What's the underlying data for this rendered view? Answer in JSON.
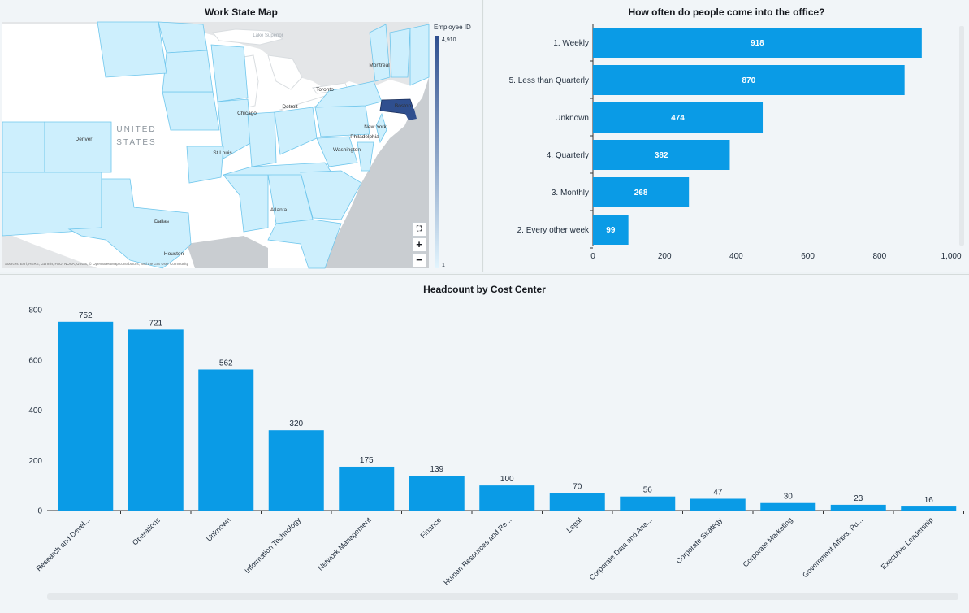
{
  "map": {
    "title": "Work State Map",
    "legend_title": "Employee ID",
    "legend_max": "4,910",
    "legend_min": "1",
    "country_label_1": "UNITED",
    "country_label_2": "STATES",
    "lake_label": "Lake Superior",
    "cities": [
      "Montreal",
      "Toronto",
      "Chicago",
      "Detroit",
      "Boston",
      "New York",
      "Philadelphia",
      "Washington",
      "Denver",
      "St Louis",
      "Atlanta",
      "Dallas",
      "Houston"
    ],
    "attribution": "Sources: Esri, HERE, Garmin, FAO, NOAA, USGS, © OpenStreetMap contributors, and the GIS User Community",
    "zoom_in": "+",
    "zoom_out": "−",
    "colors": {
      "low": "#cdeffd",
      "high": "#2f4f8f",
      "water": "#ffffff",
      "land": "#e4e6e8",
      "state_border": "#6fc6ec"
    }
  },
  "chart_data": [
    {
      "type": "bar",
      "orientation": "horizontal",
      "title": "How often do people come into the office?",
      "categories": [
        "1. Weekly",
        "5. Less than Quarterly",
        "Unknown",
        "4. Quarterly",
        "3. Monthly",
        "2. Every other week"
      ],
      "values": [
        918,
        870,
        474,
        382,
        268,
        99
      ],
      "xlim": [
        0,
        1000
      ],
      "ticks": [
        0,
        200,
        400,
        600,
        800,
        1000
      ],
      "tick_labels": [
        "0",
        "200",
        "400",
        "600",
        "800",
        "1,000"
      ],
      "color": "#0a9be6",
      "grid": false
    },
    {
      "type": "bar",
      "orientation": "vertical",
      "title": "Headcount by Cost Center",
      "categories": [
        "Research and Devel...",
        "Operations",
        "Unknown",
        "Information Technology",
        "Network Management",
        "Finance",
        "Human Resources and Re...",
        "Legal",
        "Corporate Data and Ana...",
        "Corporate Strategy",
        "Corporate Marketing",
        "Government Affairs, Pu...",
        "Executive Leadership"
      ],
      "values": [
        752,
        721,
        562,
        320,
        175,
        139,
        100,
        70,
        56,
        47,
        30,
        23,
        16
      ],
      "ylim": [
        0,
        800
      ],
      "ticks": [
        0,
        200,
        400,
        600,
        800
      ],
      "tick_labels": [
        "0",
        "200",
        "400",
        "600",
        "800"
      ],
      "color": "#0a9be6",
      "grid": false
    }
  ]
}
